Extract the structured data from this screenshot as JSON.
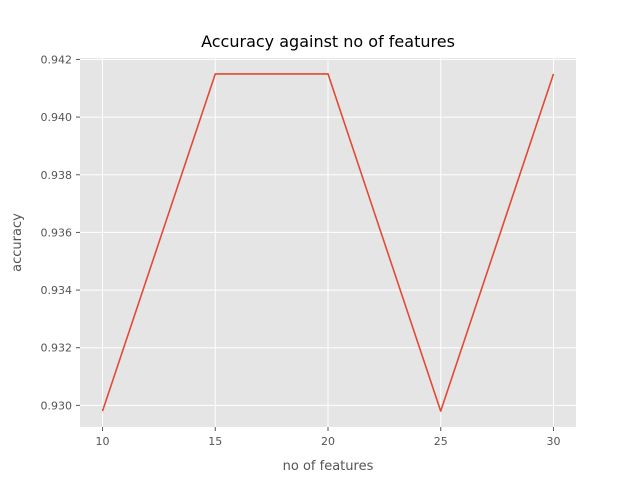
{
  "chart_data": {
    "type": "line",
    "title": "Accuracy against no of features",
    "xlabel": "no of features",
    "ylabel": "accuracy",
    "x": [
      10,
      15,
      20,
      25,
      30
    ],
    "series": [
      {
        "values": [
          0.9298,
          0.9415,
          0.9415,
          0.9298,
          0.9415
        ],
        "color": "#e24a33"
      }
    ],
    "xlim": [
      9,
      31
    ],
    "ylim": [
      0.92925,
      0.94205
    ],
    "xticks": [
      10,
      15,
      20,
      25,
      30
    ],
    "yticks": [
      0.93,
      0.932,
      0.934,
      0.936,
      0.938,
      0.94,
      0.942
    ],
    "ytick_labels": [
      "0.930",
      "0.932",
      "0.934",
      "0.936",
      "0.938",
      "0.940",
      "0.942"
    ],
    "grid": true,
    "style": "ggplot",
    "background": "#e5e5e5"
  }
}
